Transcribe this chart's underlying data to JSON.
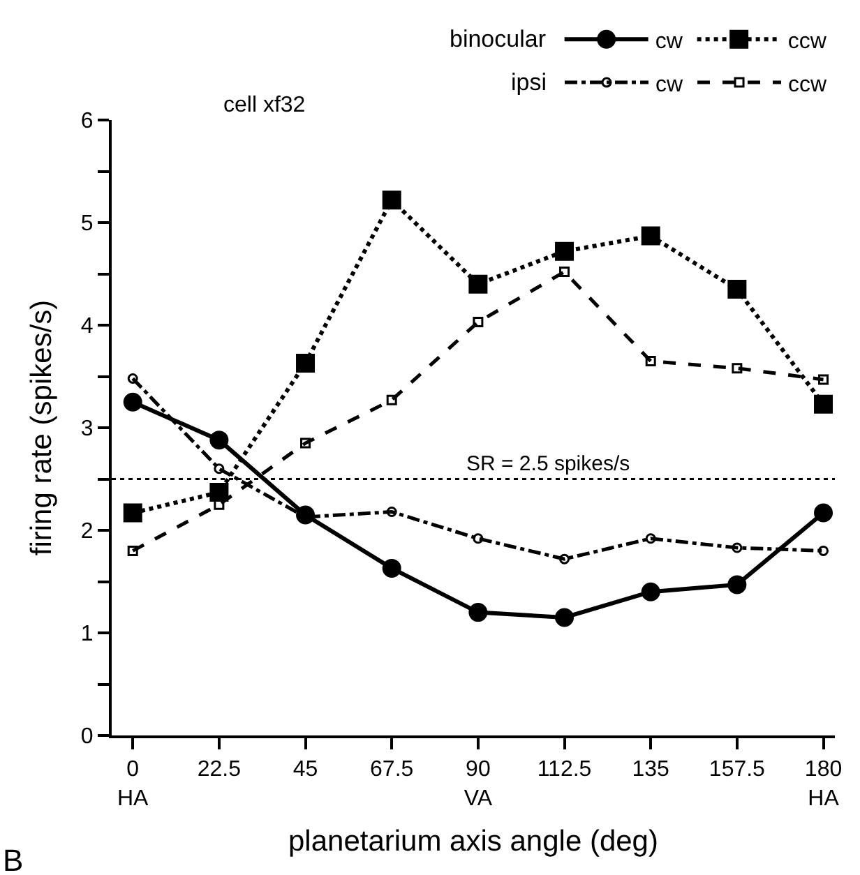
{
  "chart_data": {
    "type": "line",
    "title": "cell xf32",
    "xlabel": "planetarium axis angle (deg)",
    "ylabel": "firing rate (spikes/s)",
    "legend_title": [
      "binocular",
      "ipsi"
    ],
    "x": [
      0,
      22.5,
      45,
      67.5,
      90,
      112.5,
      135,
      157.5,
      180
    ],
    "series": [
      {
        "name": "cw",
        "color": "#000000",
        "marker": "circle",
        "line_style": "solid",
        "values": [
          3.25,
          2.88,
          2.15,
          1.63,
          1.2,
          1.15,
          1.4,
          1.47,
          2.17
        ]
      },
      {
        "name": "ccw",
        "color": "#000000",
        "marker": "square",
        "line_style": "dotted",
        "values": [
          2.17,
          2.37,
          3.63,
          5.22,
          4.4,
          4.72,
          4.87,
          4.35,
          3.23
        ]
      },
      {
        "name": "cw",
        "color": "#000000",
        "marker": "circle-open",
        "line_style": "dashdot",
        "values": [
          3.48,
          2.6,
          2.13,
          2.18,
          1.92,
          1.72,
          1.92,
          1.83,
          1.8
        ]
      },
      {
        "name": "ccw",
        "color": "#000000",
        "marker": "square-open",
        "line_style": "dashed",
        "values": [
          1.8,
          2.25,
          2.85,
          3.27,
          4.03,
          4.52,
          3.65,
          3.58,
          3.47
        ]
      }
    ],
    "xlim": [
      -5.5,
      183
    ],
    "xticks": [
      {
        "value": 0,
        "label": "0\nHA"
      },
      22.5,
      45,
      67.5,
      {
        "value": 90,
        "label": "90\nVA"
      },
      112.5,
      135,
      157.5,
      {
        "value": 180,
        "label": "180\nHA"
      }
    ],
    "ylim": [
      0,
      6
    ],
    "yticks": [
      0,
      {
        "value": 0.5,
        "label": null
      },
      1,
      {
        "value": 1.5,
        "label": null
      },
      2,
      {
        "value": 2.5,
        "label": null
      },
      3,
      {
        "value": 3.5,
        "label": null
      },
      4,
      {
        "value": 4.5,
        "label": null
      },
      5,
      {
        "value": 5.5,
        "label": null
      },
      6
    ],
    "ref_lines": [
      {
        "axis": "y",
        "value": 2.5,
        "label": "SR = 2.5 spikes/s",
        "line_style": "dotted",
        "color": "#000000"
      }
    ],
    "annotations": [
      "B"
    ],
    "legend": "top right"
  }
}
